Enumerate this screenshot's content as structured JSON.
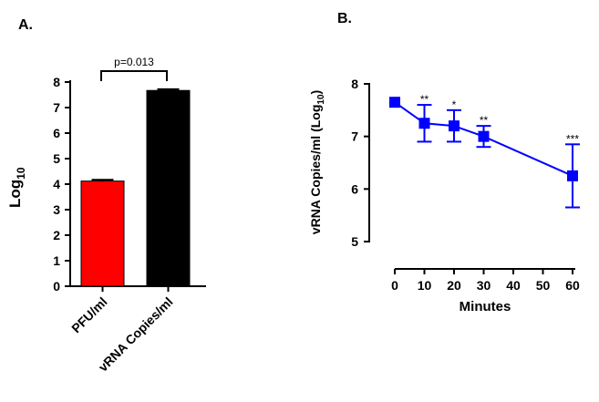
{
  "chart_data": [
    {
      "panel_label": "A.",
      "type": "bar",
      "categories": [
        "PFU/ml",
        "vRNA Copies/ml"
      ],
      "values": [
        4.12,
        7.67
      ],
      "errors": [
        0.05,
        0.05
      ],
      "colors": [
        "#ff0000",
        "#000000"
      ],
      "ylabel_main": "Log",
      "ylabel_sub": "10",
      "ylim": [
        0,
        8
      ],
      "yticks": [
        "0",
        "1",
        "2",
        "3",
        "4",
        "5",
        "6",
        "7",
        "8"
      ],
      "annotation": "p=0.013",
      "grid": false
    },
    {
      "panel_label": "B.",
      "type": "line",
      "x": [
        0,
        10,
        20,
        30,
        60
      ],
      "y": [
        7.65,
        7.25,
        7.2,
        7.0,
        6.25
      ],
      "errors": [
        0.0,
        0.35,
        0.3,
        0.2,
        0.6
      ],
      "significance": [
        "",
        "**",
        "*",
        "**",
        "***"
      ],
      "color": "#0000ff",
      "xlabel": "Minutes",
      "ylabel_main": "vRNA Copies/ml (Log",
      "ylabel_sub": "10",
      "ylabel_end": ")",
      "xlim": [
        0,
        60
      ],
      "ylim": [
        5,
        8
      ],
      "xticks": [
        "0",
        "10",
        "20",
        "30",
        "40",
        "50",
        "60"
      ],
      "yticks": [
        "5",
        "6",
        "7",
        "8"
      ],
      "grid": false
    }
  ]
}
